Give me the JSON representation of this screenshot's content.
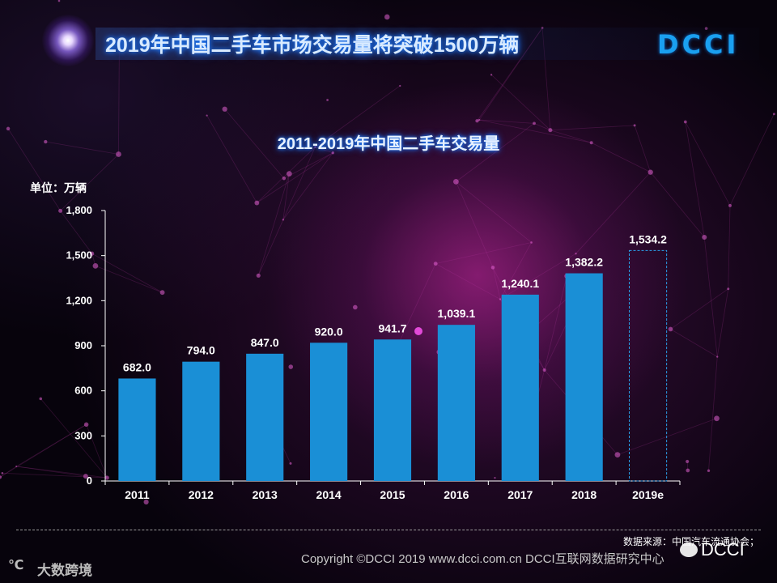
{
  "slide": {
    "title": "2019年中国二手车市场交易量将突破1500万辆",
    "logo": "DCCI"
  },
  "chart_data": {
    "type": "bar",
    "title": "2011-2019年中国二手车交易量",
    "unit_label": "单位：万辆",
    "categories": [
      "2011",
      "2012",
      "2013",
      "2014",
      "2015",
      "2016",
      "2017",
      "2018",
      "2019e"
    ],
    "values": [
      682.0,
      794.0,
      847.0,
      920.0,
      941.7,
      1039.1,
      1240.1,
      1382.2,
      1534.2
    ],
    "value_labels": [
      "682.0",
      "794.0",
      "847.0",
      "920.0",
      "941.7",
      "1,039.1",
      "1,240.1",
      "1,382.2",
      "1,534.2"
    ],
    "estimated": [
      false,
      false,
      false,
      false,
      false,
      false,
      false,
      false,
      true
    ],
    "y_ticks": [
      0,
      300,
      600,
      900,
      1200,
      1500,
      1800
    ],
    "y_tick_labels": [
      "0",
      "300",
      "600",
      "900",
      "1,200",
      "1,500",
      "1,800"
    ],
    "ylim": [
      0,
      1800
    ],
    "grid": false,
    "colors": {
      "bar": "#1a8fd6",
      "estimate_border": "#2a9ee8",
      "axis": "#ffffff",
      "label": "#ffffff"
    }
  },
  "footer": {
    "source": "数据来源：中国汽车流通协会；",
    "copyright": "Copyright ©DCCI 2019  www.dcci.com.cn   DCCI互联网数据研究中心",
    "watermark_mark": "℃",
    "watermark_text": "大数跨境",
    "watermark_dcci": "DCCI"
  }
}
